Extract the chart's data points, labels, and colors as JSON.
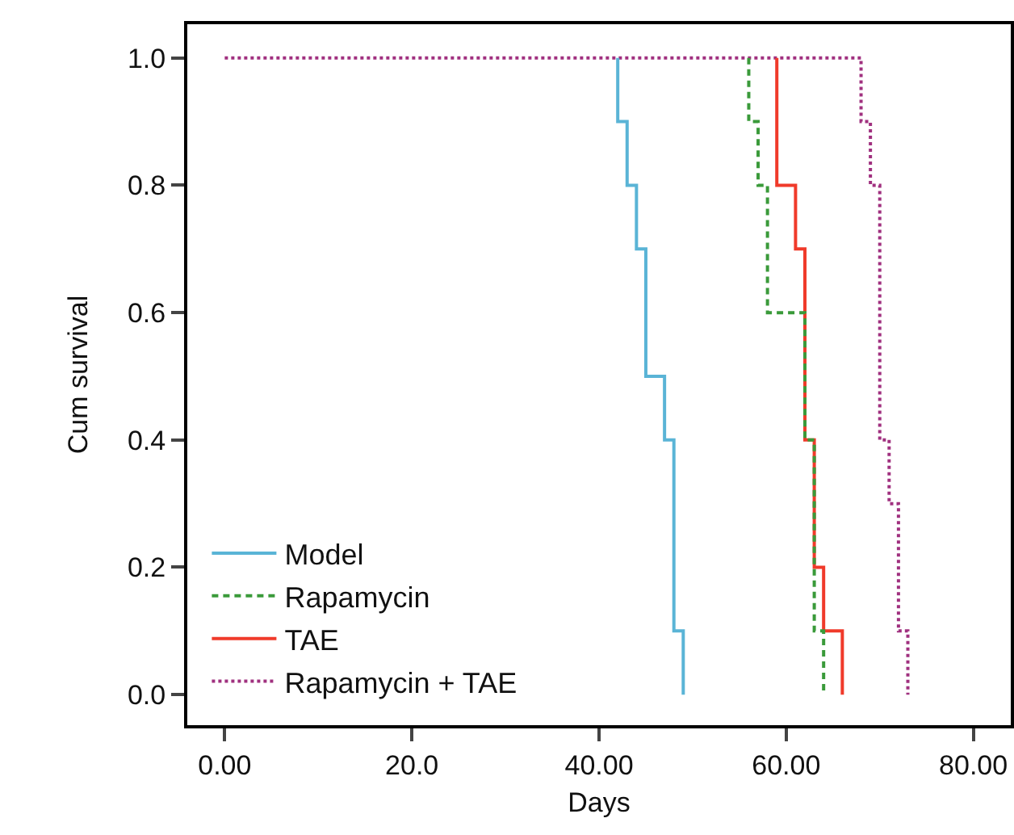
{
  "chart_data": {
    "type": "step",
    "xlabel": "Days",
    "ylabel": "Cum survival",
    "xlim": [
      -4,
      84
    ],
    "ylim": [
      -0.048,
      1.053
    ],
    "xticks": [
      {
        "value": 0,
        "label": "0.00"
      },
      {
        "value": 20,
        "label": "20.0"
      },
      {
        "value": 40,
        "label": "40.00"
      },
      {
        "value": 60,
        "label": "60.00"
      },
      {
        "value": 80,
        "label": "80.00"
      }
    ],
    "yticks": [
      {
        "value": 0,
        "label": "0.0"
      },
      {
        "value": 0.2,
        "label": "0.2"
      },
      {
        "value": 0.4,
        "label": "0.4"
      },
      {
        "value": 0.6,
        "label": "0.6"
      },
      {
        "value": 0.8,
        "label": "0.8"
      },
      {
        "value": 1,
        "label": "1.0"
      }
    ],
    "grid": false,
    "legend": "bottom left",
    "marker": "none",
    "series": [
      {
        "name": "Model",
        "color": "#5ab4d6",
        "line_style": "solid",
        "x": [
          42,
          42,
          43,
          44,
          45,
          47,
          48,
          49
        ],
        "values": [
          1,
          0.9,
          0.8,
          0.7,
          0.5,
          0.4,
          0.1,
          0
        ]
      },
      {
        "name": "Rapamycin",
        "color": "#3a9a3a",
        "line_style": "dashed",
        "x": [
          56,
          56,
          57,
          58,
          62,
          63,
          64
        ],
        "values": [
          1,
          0.9,
          0.8,
          0.6,
          0.4,
          0.1,
          0
        ]
      },
      {
        "name": "TAE",
        "color": "#f03a2a",
        "line_style": "solid",
        "x": [
          59,
          59,
          61,
          62,
          63,
          64,
          66
        ],
        "values": [
          1,
          0.8,
          0.7,
          0.4,
          0.2,
          0.1,
          0
        ]
      },
      {
        "name": "Rapamycin + TAE",
        "color": "#a0307f",
        "line_style": "dotted",
        "x": [
          0,
          68,
          69,
          70,
          71,
          72,
          73
        ],
        "values": [
          1,
          0.9,
          0.8,
          0.4,
          0.3,
          0.1,
          0
        ]
      }
    ]
  }
}
